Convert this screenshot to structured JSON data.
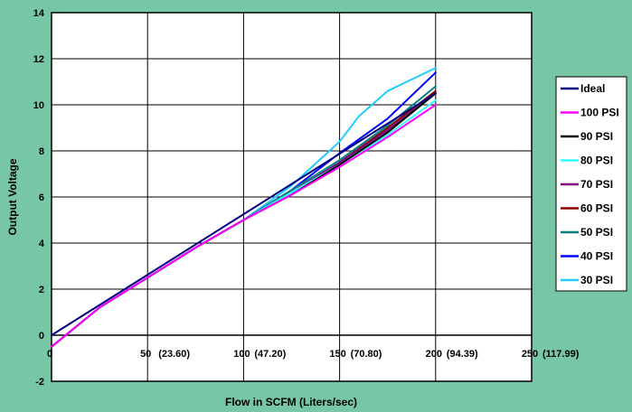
{
  "chart_data": {
    "type": "line",
    "title": "",
    "xlabel": "Flow in SCFM (Liters/sec)",
    "ylabel": "Output Voltage",
    "xlim": [
      0,
      250
    ],
    "ylim": [
      -2,
      14
    ],
    "x_ticks": [
      0,
      50,
      100,
      150,
      200,
      250
    ],
    "x_tick_labels": [
      "0",
      "50",
      "100",
      "150",
      "200",
      "250"
    ],
    "x_tick_sublabels": [
      "",
      "(23.60)",
      "(47.20)",
      "(70.80)",
      "(94.39)",
      "(117.99)"
    ],
    "y_ticks": [
      -2,
      0,
      2,
      4,
      6,
      8,
      10,
      12,
      14
    ],
    "grid": true,
    "legend_position": "right",
    "plot_background": "#FFFFFF",
    "page_background": "#77C6A6",
    "series": [
      {
        "name": "Ideal",
        "color": "#000080",
        "x": [
          0,
          200
        ],
        "y": [
          0,
          10.5
        ]
      },
      {
        "name": "100 PSI",
        "color": "#FF00FF",
        "x": [
          0,
          25,
          50,
          75,
          100,
          125,
          150,
          175,
          200
        ],
        "y": [
          -0.5,
          1.2,
          2.5,
          3.8,
          5.0,
          6.1,
          7.3,
          8.6,
          10.0
        ]
      },
      {
        "name": "90 PSI",
        "color": "#000000",
        "x": [
          0,
          25,
          50,
          75,
          100,
          125,
          150,
          175,
          200
        ],
        "y": [
          -0.5,
          1.2,
          2.5,
          3.8,
          5.0,
          6.1,
          7.4,
          8.8,
          10.5
        ]
      },
      {
        "name": "80 PSI",
        "color": "#33FFFF",
        "x": [
          0,
          25,
          50,
          75,
          100,
          125,
          150,
          175,
          200
        ],
        "y": [
          -0.5,
          1.2,
          2.5,
          3.8,
          5.0,
          6.2,
          7.4,
          8.7,
          10.2
        ]
      },
      {
        "name": "70 PSI",
        "color": "#800080",
        "x": [
          0,
          25,
          50,
          75,
          100,
          125,
          150,
          175,
          200
        ],
        "y": [
          -0.5,
          1.2,
          2.5,
          3.8,
          5.0,
          6.2,
          7.5,
          8.9,
          10.5
        ]
      },
      {
        "name": "60 PSI",
        "color": "#8B0000",
        "x": [
          0,
          25,
          50,
          75,
          100,
          125,
          150,
          175,
          200
        ],
        "y": [
          -0.5,
          1.2,
          2.5,
          3.8,
          5.0,
          6.2,
          7.5,
          9.0,
          10.6
        ]
      },
      {
        "name": "50 PSI",
        "color": "#008080",
        "x": [
          0,
          25,
          50,
          75,
          100,
          125,
          150,
          175,
          200
        ],
        "y": [
          -0.5,
          1.2,
          2.5,
          3.8,
          5.0,
          6.3,
          7.6,
          9.1,
          10.8
        ]
      },
      {
        "name": "40 PSI",
        "color": "#0000FF",
        "x": [
          0,
          25,
          50,
          75,
          100,
          125,
          150,
          175,
          200
        ],
        "y": [
          -0.5,
          1.2,
          2.5,
          3.8,
          5.0,
          6.3,
          7.9,
          9.4,
          11.4
        ]
      },
      {
        "name": "30 PSI",
        "color": "#22CCFF",
        "x": [
          0,
          25,
          50,
          75,
          100,
          125,
          150,
          160,
          175,
          190,
          200
        ],
        "y": [
          -0.5,
          1.2,
          2.5,
          3.8,
          5.0,
          6.5,
          8.4,
          9.5,
          10.6,
          11.2,
          11.6
        ]
      }
    ]
  }
}
